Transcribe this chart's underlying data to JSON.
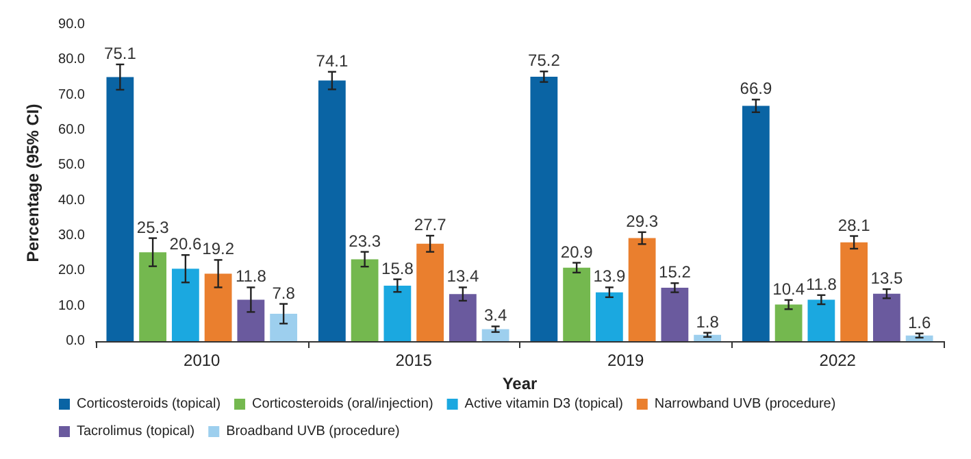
{
  "chart_data": {
    "type": "bar",
    "xlabel": "Year",
    "ylabel": "Percentage (95% CI)",
    "categories": [
      "2010",
      "2015",
      "2019",
      "2022"
    ],
    "series": [
      {
        "name": "Corticosteroids (topical)",
        "color": "#0a64a4",
        "values": [
          75.1,
          74.1,
          75.2,
          66.9
        ],
        "errors": [
          3.6,
          2.5,
          1.5,
          1.8
        ]
      },
      {
        "name": "Corticosteroids (oral/injection)",
        "color": "#74b84f",
        "values": [
          25.3,
          23.3,
          20.9,
          10.4
        ],
        "errors": [
          4.0,
          2.1,
          1.4,
          1.3
        ]
      },
      {
        "name": "Active vitamin D3 (topical)",
        "color": "#1ba8e0",
        "values": [
          20.6,
          15.8,
          13.9,
          11.8
        ],
        "errors": [
          3.9,
          1.8,
          1.4,
          1.3
        ]
      },
      {
        "name": "Narrowband UVB (procedure)",
        "color": "#ea7f2e",
        "values": [
          19.2,
          27.7,
          29.3,
          28.1
        ],
        "errors": [
          3.9,
          2.3,
          1.7,
          1.8
        ]
      },
      {
        "name": "Tacrolimus (topical)",
        "color": "#6a5a9e",
        "values": [
          11.8,
          13.4,
          15.2,
          13.5
        ],
        "errors": [
          3.5,
          1.9,
          1.3,
          1.3
        ]
      },
      {
        "name": "Broadband UVB (procedure)",
        "color": "#9dcfee",
        "values": [
          7.8,
          3.4,
          1.8,
          1.6
        ],
        "errors": [
          2.8,
          0.8,
          0.6,
          0.6
        ]
      }
    ],
    "ylim": [
      0,
      90
    ],
    "yticks": [
      {
        "value": 0,
        "label": "0.0"
      },
      {
        "value": 10,
        "label": "10.0"
      },
      {
        "value": 20,
        "label": "20.0"
      },
      {
        "value": 30,
        "label": "30.0"
      },
      {
        "value": 40,
        "label": "40.0"
      },
      {
        "value": 50,
        "label": "50.0"
      },
      {
        "value": 60,
        "label": "60.0"
      },
      {
        "value": 70,
        "label": "70.0"
      },
      {
        "value": 80,
        "label": "80.0"
      },
      {
        "value": 90,
        "label": "90.0"
      }
    ],
    "data_labels": true,
    "grid": false,
    "legend": "bottom"
  }
}
